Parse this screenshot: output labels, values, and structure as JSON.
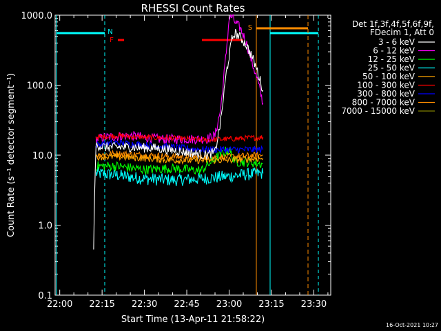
{
  "chart_data": {
    "type": "line",
    "title": "RHESSI Count Rates",
    "xlabel": "Start Time (13-Apr-11 21:58:22)",
    "ylabel": "Count Rate (s⁻¹ detector segment⁻¹)",
    "xlim": [
      "21:58:22",
      "23:36:00"
    ],
    "ylim": [
      0.1,
      1000
    ],
    "yscale": "log",
    "x_ticks": [
      "22:00",
      "22:15",
      "22:30",
      "22:45",
      "23:00",
      "23:15",
      "23:30"
    ],
    "y_ticks": [
      "0.1",
      "1.0",
      "10.0",
      "100.0",
      "1000.0"
    ],
    "legend_header": [
      "Det 1f,3f,4f,5f,6f,9f,",
      "FDecim 1, Att 0"
    ],
    "legend_position": "right, outside plot",
    "timestamp": "16-Oct-2021 10:27",
    "series": [
      {
        "name": "3 - 6 keV",
        "color": "#ffffff",
        "points": [
          [
            "22:12:00",
            0.45
          ],
          [
            "22:12:20",
            2.5
          ],
          [
            "22:12:50",
            14
          ],
          [
            "22:16",
            13
          ],
          [
            "22:25",
            13
          ],
          [
            "22:35",
            12.5
          ],
          [
            "22:45",
            11
          ],
          [
            "22:52",
            10
          ],
          [
            "22:55",
            11
          ],
          [
            "22:57",
            30
          ],
          [
            "22:59",
            150
          ],
          [
            "23:01",
            450
          ],
          [
            "23:02",
            560
          ],
          [
            "23:04",
            480
          ],
          [
            "23:06",
            380
          ],
          [
            "23:08",
            260
          ],
          [
            "23:10",
            160
          ],
          [
            "23:12",
            85
          ]
        ]
      },
      {
        "name": "6 - 12 keV",
        "color": "#ff00ff",
        "points": [
          [
            "22:12:50",
            17
          ],
          [
            "22:16",
            18
          ],
          [
            "22:25",
            19
          ],
          [
            "22:35",
            17
          ],
          [
            "22:45",
            17
          ],
          [
            "22:52",
            17
          ],
          [
            "22:55",
            19
          ],
          [
            "22:57",
            45
          ],
          [
            "22:59",
            300
          ],
          [
            "23:00",
            900
          ],
          [
            "23:01",
            950
          ],
          [
            "23:02",
            800
          ],
          [
            "23:04",
            650
          ],
          [
            "23:06",
            420
          ],
          [
            "23:08",
            220
          ],
          [
            "23:10",
            120
          ],
          [
            "23:12",
            55
          ]
        ]
      },
      {
        "name": "12 - 25 keV",
        "color": "#00ff00",
        "points": [
          [
            "22:12:50",
            7
          ],
          [
            "22:20",
            7
          ],
          [
            "22:30",
            6.2
          ],
          [
            "22:40",
            6.5
          ],
          [
            "22:50",
            6
          ],
          [
            "22:58",
            11
          ],
          [
            "23:00",
            12
          ],
          [
            "23:02",
            8
          ],
          [
            "23:06",
            8
          ],
          [
            "23:12",
            7.5
          ]
        ]
      },
      {
        "name": "25 - 50 keV",
        "color": "#00ffff",
        "points": [
          [
            "22:12:50",
            5.5
          ],
          [
            "22:20",
            5.2
          ],
          [
            "22:30",
            4.6
          ],
          [
            "22:40",
            4.4
          ],
          [
            "22:50",
            4.6
          ],
          [
            "23:00",
            5.0
          ],
          [
            "23:06",
            5.3
          ],
          [
            "23:12",
            5.5
          ]
        ]
      },
      {
        "name": "50 - 100 keV",
        "color": "#ffa500",
        "points": [
          [
            "22:12:50",
            9.5
          ],
          [
            "22:20",
            9.5
          ],
          [
            "22:30",
            9
          ],
          [
            "22:40",
            8.5
          ],
          [
            "22:50",
            8.4
          ],
          [
            "23:00",
            8.5
          ],
          [
            "23:06",
            8.8
          ],
          [
            "23:12",
            9
          ]
        ]
      },
      {
        "name": "100 - 300 keV",
        "color": "#ff0000",
        "points": [
          [
            "22:12:50",
            18
          ],
          [
            "22:20",
            19
          ],
          [
            "22:30",
            18
          ],
          [
            "22:40",
            17.5
          ],
          [
            "22:50",
            16.5
          ],
          [
            "23:00",
            17
          ],
          [
            "23:06",
            17.5
          ],
          [
            "23:12",
            18
          ]
        ]
      },
      {
        "name": "300 - 800 keV",
        "color": "#0000ff",
        "points": [
          [
            "22:12:50",
            14
          ],
          [
            "22:20",
            15
          ],
          [
            "22:30",
            14
          ],
          [
            "22:40",
            13
          ],
          [
            "22:50",
            12
          ],
          [
            "23:00",
            12
          ],
          [
            "23:06",
            12
          ],
          [
            "23:12",
            12
          ]
        ]
      },
      {
        "name": "800 - 7000 keV",
        "color": "#ff8c00",
        "points": [
          [
            "22:12:50",
            10
          ],
          [
            "22:20",
            10.5
          ],
          [
            "22:30",
            10
          ],
          [
            "22:40",
            9.5
          ],
          [
            "22:50",
            9.3
          ],
          [
            "23:00",
            9.5
          ],
          [
            "23:06",
            9.7
          ],
          [
            "23:12",
            10
          ]
        ]
      },
      {
        "name": "7000 - 15000 keV",
        "color": "#808000",
        "points": []
      }
    ],
    "annotations": [
      {
        "label": "N",
        "color": "#00ffff",
        "x": "22:16"
      },
      {
        "label": "F",
        "color": "#ff0000",
        "x": "22:18"
      },
      {
        "label": "S",
        "color": "#ff8c00",
        "x": "23:11"
      }
    ]
  }
}
